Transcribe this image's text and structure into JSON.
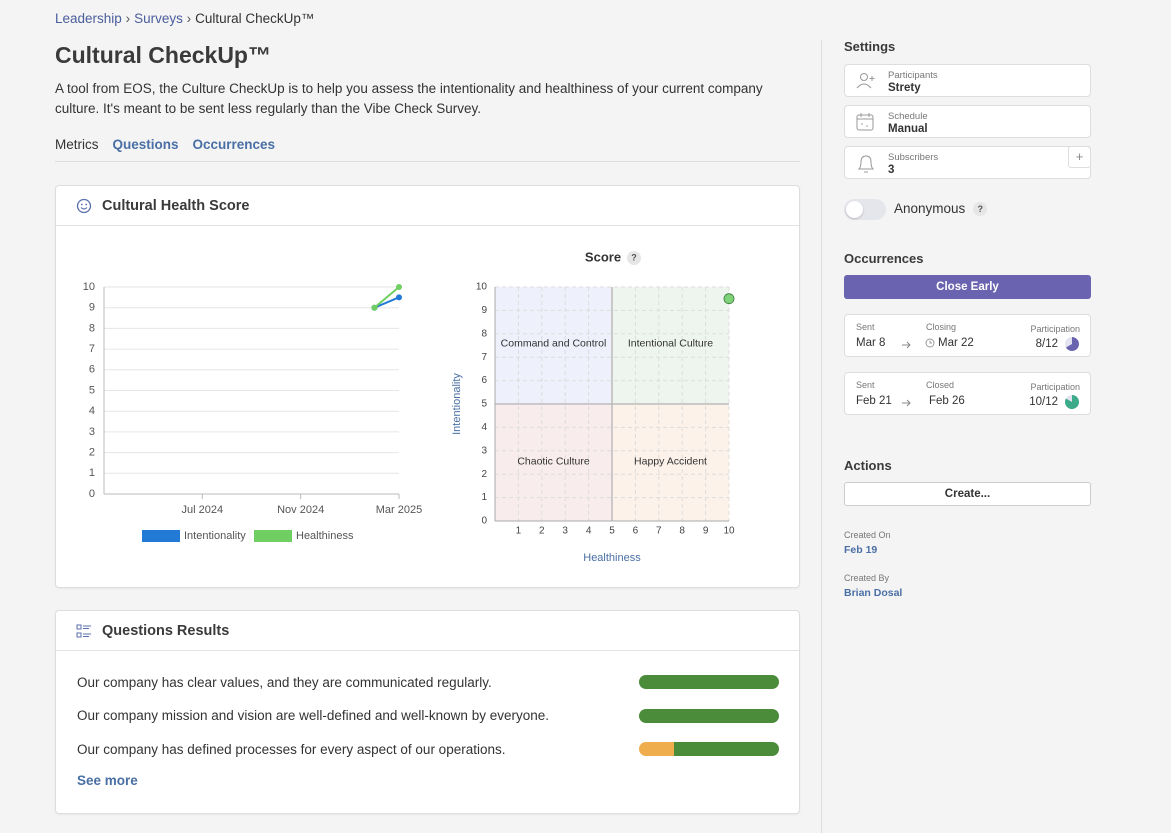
{
  "breadcrumb": [
    "Leadership",
    "Surveys",
    "Cultural CheckUp™"
  ],
  "page_title": "Cultural CheckUp™",
  "description": "A tool from EOS, the Culture CheckUp is to help you assess the intentionality and healthiness of your current company culture. It's meant to be sent less regularly than the Vibe Check Survey.",
  "tabs": [
    "Metrics",
    "Questions",
    "Occurrences"
  ],
  "health_card": {
    "title": "Cultural Health Score"
  },
  "chart_data": [
    {
      "type": "line",
      "x": [
        "2025-02",
        "2025-03"
      ],
      "series": [
        {
          "name": "Intentionality",
          "color": "#2279d6",
          "values": [
            9,
            9.5
          ]
        },
        {
          "name": "Healthiness",
          "color": "#6fcf63",
          "values": [
            9,
            10
          ]
        }
      ],
      "xlim": [
        "2024-03",
        "2025-03"
      ],
      "xticks": [
        {
          "value": "2024-07",
          "label": "Jul 2024"
        },
        {
          "value": "2024-11",
          "label": "Nov 2024"
        },
        {
          "value": "2025-03",
          "label": "Mar 2025"
        }
      ],
      "ylim": [
        0,
        10
      ],
      "yticks": [
        0,
        1,
        2,
        3,
        4,
        5,
        6,
        7,
        8,
        9,
        10
      ],
      "grid": true,
      "legend": "bottom"
    },
    {
      "type": "scatter",
      "title": "Score",
      "help": "?",
      "x_label": "Healthiness",
      "y_label": "Intentionality",
      "x": [
        10
      ],
      "values": [
        9.5
      ],
      "color": "#7ed37a",
      "xlim": [
        0,
        10
      ],
      "xticks": [
        1,
        2,
        3,
        4,
        5,
        6,
        7,
        8,
        9,
        10
      ],
      "ylim": [
        0,
        10
      ],
      "yticks": [
        0,
        1,
        2,
        3,
        4,
        5,
        6,
        7,
        8,
        9,
        10
      ],
      "grid": true,
      "quadrants": [
        {
          "label": "Command and Control",
          "color": "#eef0fb"
        },
        {
          "label": "Intentional Culture",
          "color": "#eef5ee"
        },
        {
          "label": "Chaotic Culture",
          "color": "#f9ecec"
        },
        {
          "label": "Happy Accident",
          "color": "#fcf2ea"
        }
      ]
    }
  ],
  "questions_card": {
    "title": "Questions Results",
    "rows": [
      {
        "text": "Our company has clear values, and they are communicated regularly.",
        "segments": [
          {
            "value": 100,
            "color": "#4a8c3a"
          }
        ]
      },
      {
        "text": "Our company mission and vision are well-defined and well-known by everyone.",
        "segments": [
          {
            "value": 100,
            "color": "#4a8c3a"
          }
        ]
      },
      {
        "text": "Our company has defined processes for every aspect of our operations.",
        "segments": [
          {
            "value": 25,
            "color": "#f0ad4e"
          },
          {
            "value": 75,
            "color": "#4a8c3a"
          }
        ]
      }
    ],
    "see_more": "See more"
  },
  "sidebar": {
    "settings_title": "Settings",
    "settings": [
      {
        "key": "Participants",
        "value": "Strety"
      },
      {
        "key": "Schedule",
        "value": "Manual"
      },
      {
        "key": "Subscribers",
        "value": "3"
      }
    ],
    "add_button": "+",
    "anonymous": "Anonymous",
    "anonymous_help": "?",
    "occurrences_title": "Occurrences",
    "close_early": "Close Early",
    "occurrences": [
      {
        "sent_label": "Sent",
        "sent": "Mar 8",
        "end_label": "Closing",
        "end": "Mar 22",
        "participation_label": "Participation",
        "participation": {
          "label": "8/12",
          "responded": 8,
          "total": 12
        },
        "color": "#6a63b0"
      },
      {
        "sent_label": "Sent",
        "sent": "Feb 21",
        "end_label": "Closed",
        "end": "Feb 26",
        "participation_label": "Participation",
        "participation": {
          "label": "10/12",
          "responded": 10,
          "total": 12
        },
        "color": "#3daa8a"
      }
    ],
    "actions_title": "Actions",
    "create": "Create...",
    "created_on_label": "Created On",
    "created_on": "Feb 19",
    "created_by_label": "Created By",
    "created_by": "Brian Dosal"
  }
}
